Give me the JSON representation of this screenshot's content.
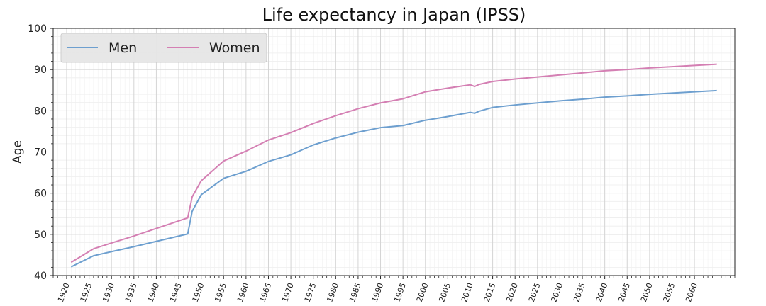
{
  "chart_data": {
    "type": "line",
    "title": "Life expectancy in Japan (IPSS)",
    "xlabel": "",
    "ylabel": "Age",
    "xlim": [
      1917,
      2069
    ],
    "ylim": [
      40,
      100
    ],
    "y_ticks": [
      40,
      50,
      60,
      70,
      80,
      90,
      100
    ],
    "x_ticks": [
      1920,
      1925,
      1930,
      1935,
      1940,
      1945,
      1950,
      1955,
      1960,
      1965,
      1970,
      1975,
      1980,
      1985,
      1990,
      1995,
      2000,
      2005,
      2010,
      2015,
      2020,
      2025,
      2030,
      2035,
      2040,
      2045,
      2050,
      2055,
      2060
    ],
    "grid": true,
    "legend": "top-left",
    "colors": {
      "men": "#6d9fcf",
      "women": "#d47fb3"
    },
    "series": [
      {
        "name": "Men",
        "x": [
          1921,
          1926,
          1930,
          1935,
          1947,
          1948,
          1950,
          1955,
          1960,
          1965,
          1970,
          1975,
          1980,
          1985,
          1990,
          1995,
          2000,
          2005,
          2010,
          2011,
          2012,
          2015,
          2020,
          2025,
          2030,
          2035,
          2040,
          2045,
          2050,
          2055,
          2060,
          2065
        ],
        "values": [
          42.1,
          44.8,
          45.8,
          47.0,
          50.1,
          55.6,
          59.6,
          63.6,
          65.3,
          67.7,
          69.3,
          71.7,
          73.4,
          74.8,
          75.9,
          76.4,
          77.7,
          78.6,
          79.6,
          79.4,
          79.9,
          80.8,
          81.4,
          81.9,
          82.4,
          82.8,
          83.3,
          83.6,
          84.0,
          84.3,
          84.6,
          84.9
        ]
      },
      {
        "name": "Women",
        "x": [
          1921,
          1926,
          1930,
          1935,
          1947,
          1948,
          1950,
          1955,
          1960,
          1965,
          1970,
          1975,
          1980,
          1985,
          1990,
          1995,
          2000,
          2005,
          2010,
          2011,
          2012,
          2015,
          2020,
          2025,
          2030,
          2035,
          2040,
          2045,
          2050,
          2055,
          2060,
          2065
        ],
        "values": [
          43.2,
          46.5,
          47.9,
          49.6,
          54.0,
          59.1,
          63.0,
          67.8,
          70.2,
          72.9,
          74.7,
          76.9,
          78.8,
          80.5,
          81.9,
          82.9,
          84.6,
          85.5,
          86.3,
          85.9,
          86.4,
          87.1,
          87.7,
          88.2,
          88.7,
          89.2,
          89.7,
          90.0,
          90.4,
          90.7,
          91.0,
          91.3
        ]
      }
    ]
  }
}
